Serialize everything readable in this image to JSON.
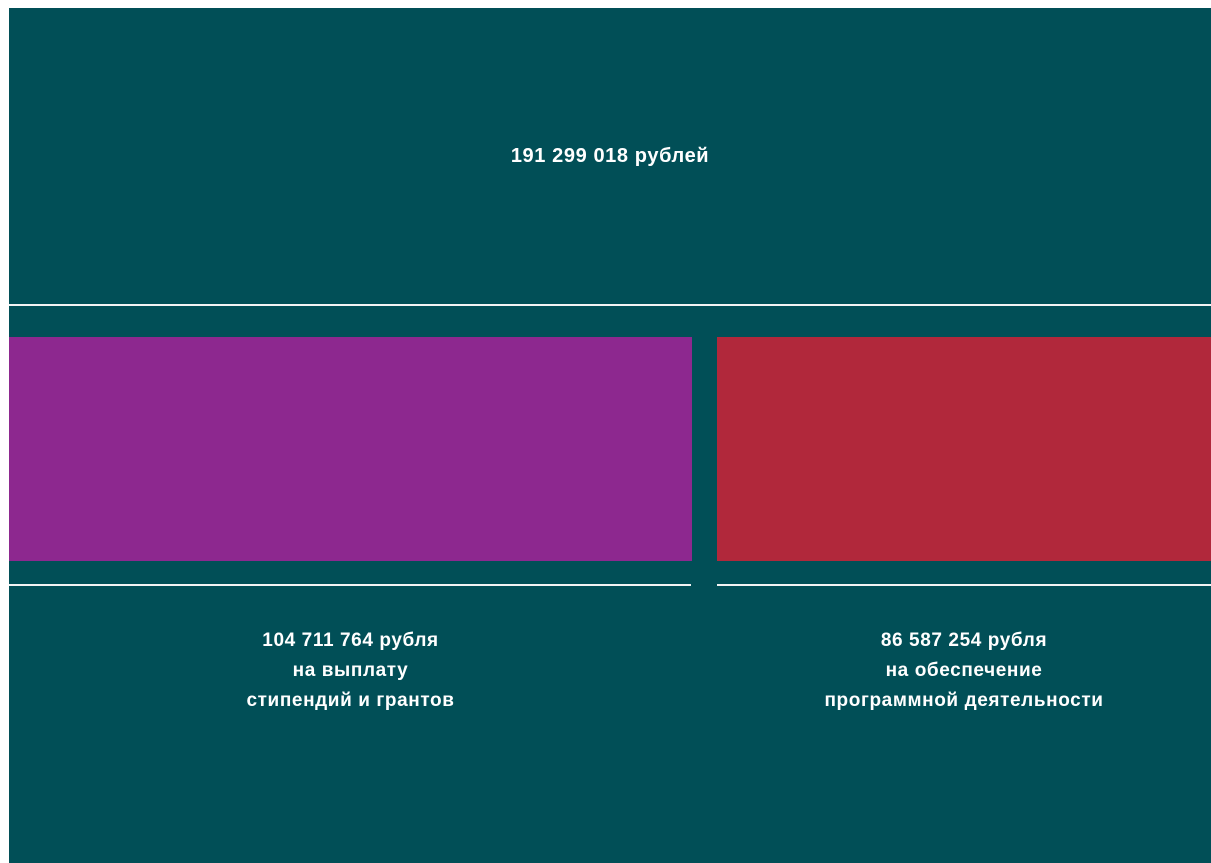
{
  "chart_data": {
    "type": "bar",
    "total": {
      "value": 191299018,
      "label": "191 299 018 рублей"
    },
    "series": [
      {
        "value": 104711764,
        "color": "#8d288f",
        "lines": [
          "104 711 764 рубля",
          "на выплату",
          "стипендий и грантов"
        ]
      },
      {
        "value": 86587254,
        "color": "#b1283b",
        "lines": [
          "86 587 254 рубля",
          "на обеспечение",
          "программной деятельности"
        ]
      }
    ]
  },
  "colors": {
    "background": "#014f57",
    "rule": "#f2f4f4",
    "text": "#ffffff"
  }
}
